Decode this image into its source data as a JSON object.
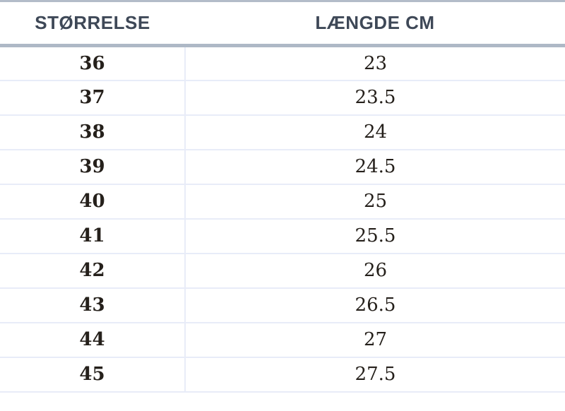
{
  "table": {
    "headers": [
      "STØRRELSE",
      "LÆNGDE CM"
    ],
    "rows": [
      {
        "size": "36",
        "length_cm": "23"
      },
      {
        "size": "37",
        "length_cm": "23.5"
      },
      {
        "size": "38",
        "length_cm": "24"
      },
      {
        "size": "39",
        "length_cm": "24.5"
      },
      {
        "size": "40",
        "length_cm": "25"
      },
      {
        "size": "41",
        "length_cm": "25.5"
      },
      {
        "size": "42",
        "length_cm": "26"
      },
      {
        "size": "43",
        "length_cm": "26.5"
      },
      {
        "size": "44",
        "length_cm": "27"
      },
      {
        "size": "45",
        "length_cm": "27.5"
      }
    ]
  },
  "colors": {
    "top_bar": "#b3bcc9",
    "header_rule": "#aeb8c6",
    "row_line": "#e8ecf8",
    "header_text": "#3e4857",
    "body_text": "#25201b",
    "table_bg": "#ffffff"
  },
  "chart_data": {
    "type": "table",
    "columns": [
      "STØRRELSE",
      "LÆNGDE CM"
    ],
    "rows": [
      [
        36,
        23
      ],
      [
        37,
        23.5
      ],
      [
        38,
        24
      ],
      [
        39,
        24.5
      ],
      [
        40,
        25
      ],
      [
        41,
        25.5
      ],
      [
        42,
        26
      ],
      [
        43,
        26.5
      ],
      [
        44,
        27
      ],
      [
        45,
        27.5
      ]
    ]
  }
}
